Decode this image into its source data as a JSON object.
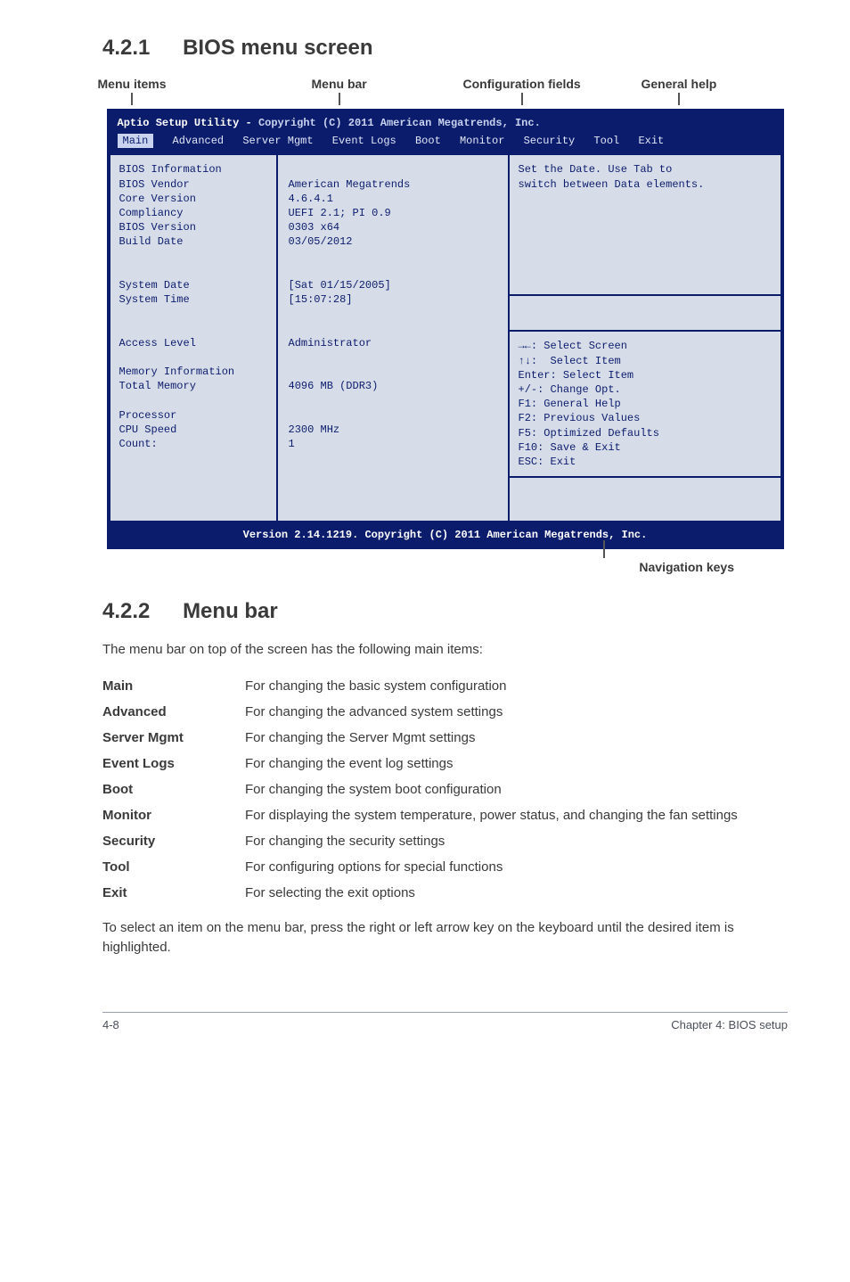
{
  "title_421_num": "4.2.1",
  "title_421_text": "BIOS menu screen",
  "labels": {
    "menu_items": "Menu items",
    "menu_bar": "Menu bar",
    "config_fields": "Configuration fields",
    "general_help": "General help"
  },
  "bios": {
    "header_left": "Aptio Setup Utility -",
    "header_right": "Copyright (C) 2011 American Megatrends, Inc.",
    "tabs": [
      "Main",
      "Advanced",
      "Server Mgmt",
      "Event Logs",
      "Boot",
      "Monitor",
      "Security",
      "Tool",
      "Exit"
    ],
    "left_lines": [
      "BIOS Information",
      "BIOS Vendor",
      "Core Version",
      "Compliancy",
      "BIOS Version",
      "Build Date",
      "",
      "",
      "System Date",
      "System Time",
      "",
      "",
      "Access Level",
      "",
      "Memory Information",
      "Total Memory",
      "",
      "Processor",
      "CPU Speed",
      "Count:"
    ],
    "mid_lines": [
      "",
      "American Megatrends",
      "4.6.4.1",
      "UEFI 2.1; PI 0.9",
      "0303 x64",
      "03/05/2012",
      "",
      "",
      "[Sat 01/15/2005]",
      "[15:07:28]",
      "",
      "",
      "Administrator",
      "",
      "",
      "4096 MB (DDR3)",
      "",
      "",
      "2300 MHz",
      "1"
    ],
    "right_top": [
      "Set the Date. Use Tab to",
      "switch between Data elements."
    ],
    "right_mid_blank_lines": 3,
    "right_help": [
      "→←: Select Screen",
      "↑↓:  Select Item",
      "Enter: Select Item",
      "+/-: Change Opt.",
      "F1: General Help",
      "F2: Previous Values",
      "F5: Optimized Defaults",
      "F10: Save & Exit",
      "ESC: Exit"
    ],
    "footer": "Version 2.14.1219. Copyright (C) 2011 American Megatrends, Inc."
  },
  "nav_keys_label": "Navigation keys",
  "title_422_num": "4.2.2",
  "title_422_text": "Menu bar",
  "intro_422": "The menu bar on top of the screen has the following main items:",
  "defs": [
    {
      "term": "Main",
      "desc": "For changing the basic system configuration"
    },
    {
      "term": "Advanced",
      "desc": "For changing the advanced system settings"
    },
    {
      "term": "Server Mgmt",
      "desc": "For changing the Server Mgmt settings"
    },
    {
      "term": "Event Logs",
      "desc": "For changing the event log settings"
    },
    {
      "term": "Boot",
      "desc": "For changing the system boot configuration"
    },
    {
      "term": "Monitor",
      "desc": "For displaying the system temperature, power status, and changing the fan settings"
    },
    {
      "term": "Security",
      "desc": "For changing the security settings"
    },
    {
      "term": "Tool",
      "desc": "For configuring options for special functions"
    },
    {
      "term": "Exit",
      "desc": "For selecting the exit options"
    }
  ],
  "outro_422": "To select an item on the menu bar, press the right or left arrow key on the keyboard until the desired item is highlighted.",
  "footer_left": "4-8",
  "footer_right": "Chapter 4: BIOS setup",
  "colors": {
    "bios_bg": "#0b1c6d",
    "bios_panel": "#d7dde8"
  }
}
